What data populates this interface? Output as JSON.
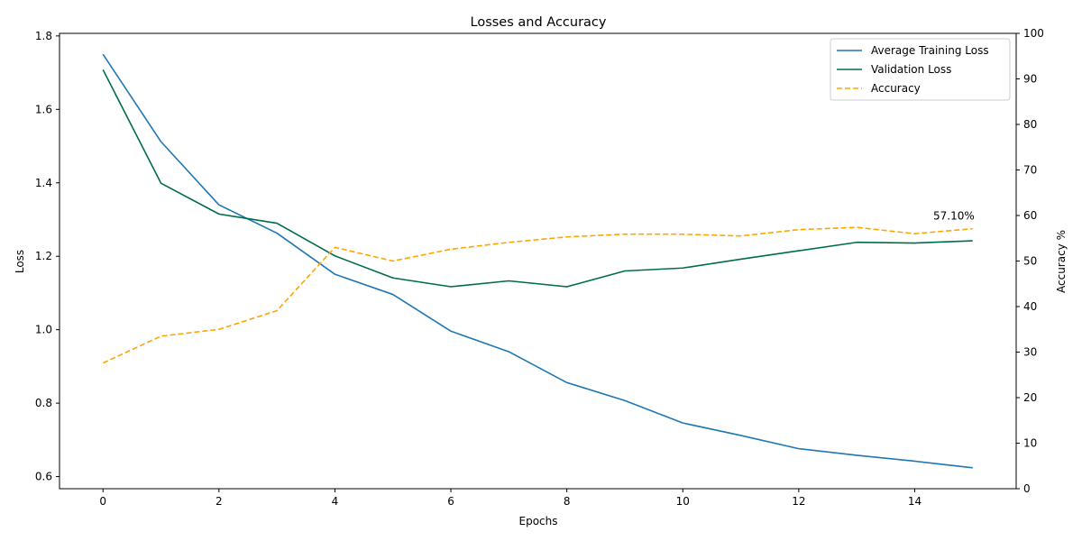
{
  "chart_data": {
    "type": "line",
    "title": "Losses and Accuracy",
    "xlabel": "Epochs",
    "ylabel": "Loss",
    "y2label": "Accuracy %",
    "x": [
      0,
      1,
      2,
      3,
      4,
      5,
      6,
      7,
      8,
      9,
      10,
      11,
      12,
      13,
      14,
      15
    ],
    "xlim": [
      -0.75,
      15.75
    ],
    "ylim": [
      0.567,
      1.807
    ],
    "y2lim": [
      0,
      100
    ],
    "xticks": [
      0,
      2,
      4,
      6,
      8,
      10,
      12,
      14
    ],
    "yticks": [
      0.6,
      0.8,
      1.0,
      1.2,
      1.4,
      1.6,
      1.8
    ],
    "y2ticks": [
      0,
      10,
      20,
      30,
      40,
      50,
      60,
      70,
      80,
      90,
      100
    ],
    "grid": false,
    "legend_position": "top-right",
    "series": [
      {
        "name": "Average Training Loss",
        "axis": "left",
        "color": "#1f77b4",
        "style": "solid",
        "values": [
          1.75,
          1.512,
          1.34,
          1.263,
          1.151,
          1.096,
          0.996,
          0.94,
          0.856,
          0.807,
          0.746,
          0.712,
          0.676,
          0.658,
          0.642,
          0.624
        ]
      },
      {
        "name": "Validation Loss",
        "axis": "left",
        "color": "#006d4a",
        "style": "solid",
        "values": [
          1.708,
          1.399,
          1.315,
          1.29,
          1.201,
          1.141,
          1.117,
          1.133,
          1.117,
          1.16,
          1.168,
          1.192,
          1.215,
          1.238,
          1.236,
          1.242
        ]
      },
      {
        "name": "Accuracy",
        "axis": "right",
        "color": "#ffa500",
        "style": "dashed",
        "values": [
          27.6,
          33.5,
          35.0,
          39.1,
          53.0,
          50.0,
          52.6,
          54.1,
          55.3,
          55.9,
          55.9,
          55.5,
          56.9,
          57.4,
          56.0,
          57.1
        ]
      }
    ],
    "annotations": [
      {
        "text": "57.10%",
        "x": 15,
        "y": 57.1,
        "axis": "right"
      }
    ]
  }
}
